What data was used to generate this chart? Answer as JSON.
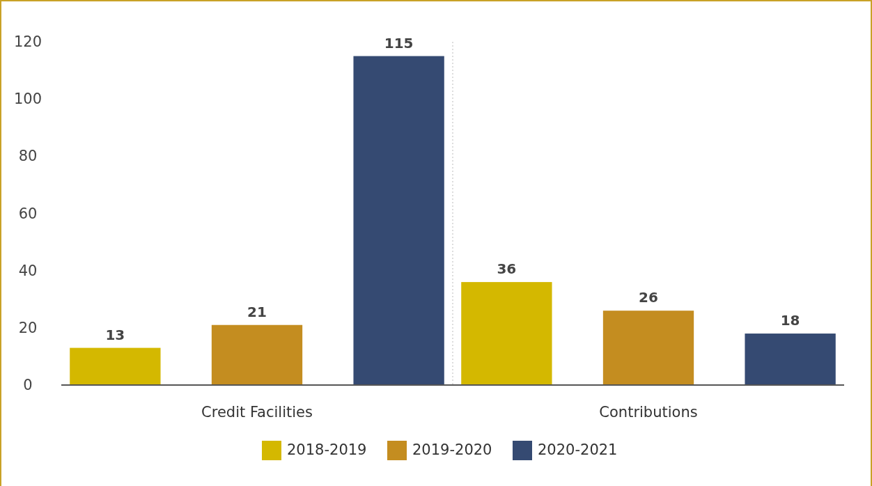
{
  "chart_data": {
    "type": "bar",
    "categories": [
      "Credit Facilities",
      "Contributions"
    ],
    "series": [
      {
        "name": "2018-2019",
        "color": "#d4b800",
        "values": [
          13,
          36
        ]
      },
      {
        "name": "2019-2020",
        "color": "#c48d20",
        "values": [
          21,
          26
        ]
      },
      {
        "name": "2020-2021",
        "color": "#354a72",
        "values": [
          115,
          18
        ]
      }
    ],
    "ylim": [
      0,
      120
    ],
    "yticks": [
      0,
      20,
      40,
      60,
      80,
      100,
      120
    ],
    "data_labels": true,
    "grid": false,
    "legend": "bottom"
  }
}
